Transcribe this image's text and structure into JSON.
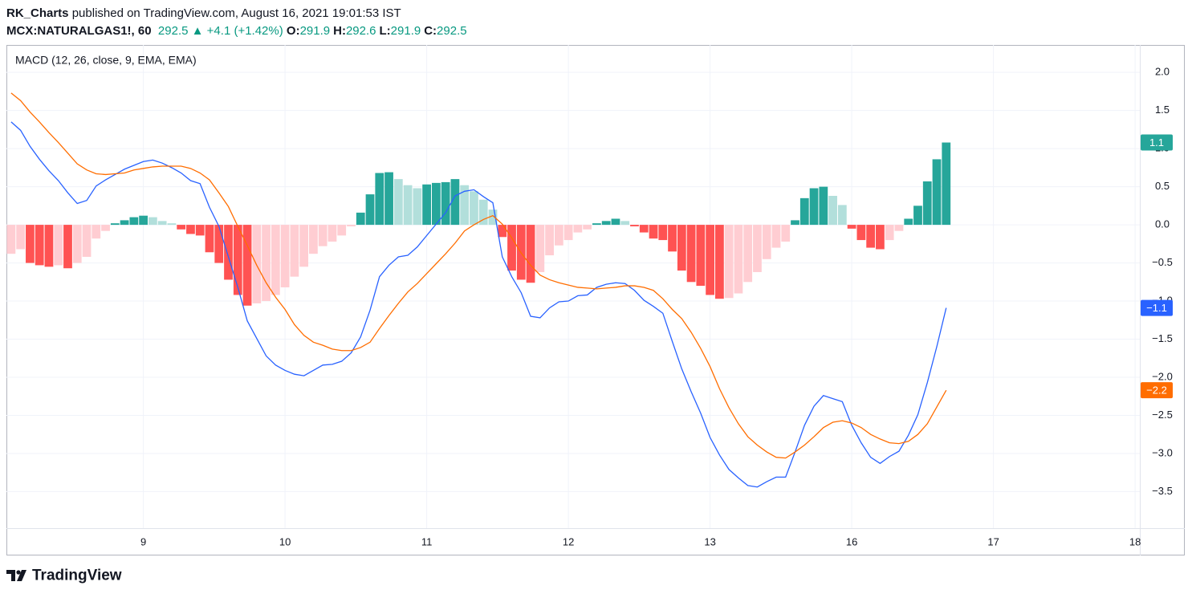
{
  "header": {
    "author": "RK_Charts",
    "published": "published on TradingView.com, August 16, 2021 19:01:53 IST",
    "symbol": "MCX:NATURALGAS1!, 60",
    "last": "292.5",
    "arrow": "▲",
    "change": "+4.1 (+1.42%)",
    "ohlc": [
      {
        "label": "O:",
        "value": "291.9"
      },
      {
        "label": "H:",
        "value": "292.6"
      },
      {
        "label": "L:",
        "value": "291.9"
      },
      {
        "label": "C:",
        "value": "292.5"
      }
    ]
  },
  "footer": {
    "brand": "TradingView"
  },
  "chart_data": {
    "type": "macd",
    "indicator": "MACD (12, 26, close, 9, EMA, EMA)",
    "categories": [
      null,
      null,
      null,
      null,
      null,
      null,
      null,
      null,
      null,
      null,
      null,
      null,
      null,
      null,
      "9",
      null,
      null,
      null,
      null,
      null,
      null,
      null,
      null,
      null,
      null,
      null,
      null,
      null,
      null,
      "10",
      null,
      null,
      null,
      null,
      null,
      null,
      null,
      null,
      null,
      null,
      null,
      null,
      null,
      null,
      "11",
      null,
      null,
      null,
      null,
      null,
      null,
      null,
      null,
      null,
      null,
      null,
      null,
      null,
      null,
      "12",
      null,
      null,
      null,
      null,
      null,
      null,
      null,
      null,
      null,
      null,
      null,
      null,
      null,
      null,
      "13",
      null,
      null,
      null,
      null,
      null,
      null,
      null,
      null,
      null,
      null,
      null,
      null,
      null,
      null,
      "16",
      null,
      null,
      null,
      null,
      null,
      null,
      null,
      null,
      null,
      null,
      null,
      null,
      null,
      null,
      "17",
      null,
      null,
      null,
      null,
      null,
      null,
      null,
      null,
      null,
      null,
      null,
      null,
      null,
      null,
      "18"
    ],
    "ylim": [
      -3.98,
      2.36
    ],
    "yticks": [
      {
        "value": 2,
        "label": "2.0"
      },
      {
        "value": 1.5,
        "label": "1.5"
      },
      {
        "value": 1,
        "label": "1.0"
      },
      {
        "value": 0.5,
        "label": "0.5"
      },
      {
        "value": 0,
        "label": "0.0"
      },
      {
        "value": -0.5,
        "label": "−0.5"
      },
      {
        "value": -1,
        "label": "−1.0"
      },
      {
        "value": -1.5,
        "label": "−1.5"
      },
      {
        "value": -2,
        "label": "−2.0"
      },
      {
        "value": -2.5,
        "label": "−2.5"
      },
      {
        "value": -3,
        "label": "−3.0"
      },
      {
        "value": -3.5,
        "label": "−3.5"
      }
    ],
    "grid": true,
    "series": [
      {
        "kind": "histogram",
        "last_label": "1.1",
        "color": "#26a69a",
        "palette": {
          "grow_above": "#26a69a",
          "fall_above": "#b2dfdb",
          "grow_below": "#ffcdd2",
          "fall_below": "#ff5252"
        },
        "values": [
          -0.38,
          -0.32,
          -0.5,
          -0.53,
          -0.55,
          -0.53,
          -0.57,
          -0.5,
          -0.42,
          -0.18,
          -0.08,
          0.02,
          0.06,
          0.1,
          0.12,
          0.1,
          0.05,
          0.02,
          -0.06,
          -0.12,
          -0.14,
          -0.36,
          -0.5,
          -0.72,
          -0.92,
          -1.06,
          -1.03,
          -1.0,
          -0.92,
          -0.82,
          -0.68,
          -0.55,
          -0.38,
          -0.28,
          -0.22,
          -0.14,
          -0.02,
          0.16,
          0.4,
          0.68,
          0.69,
          0.6,
          0.52,
          0.48,
          0.53,
          0.55,
          0.56,
          0.6,
          0.52,
          0.44,
          0.33,
          0.2,
          -0.16,
          -0.6,
          -0.72,
          -0.76,
          -0.62,
          -0.4,
          -0.27,
          -0.2,
          -0.1,
          -0.06,
          0.02,
          0.05,
          0.08,
          0.05,
          -0.02,
          -0.1,
          -0.18,
          -0.2,
          -0.35,
          -0.6,
          -0.75,
          -0.8,
          -0.92,
          -0.97,
          -0.96,
          -0.9,
          -0.75,
          -0.62,
          -0.45,
          -0.3,
          -0.22,
          0.06,
          0.35,
          0.48,
          0.5,
          0.38,
          0.26,
          -0.05,
          -0.2,
          -0.3,
          -0.32,
          -0.2,
          -0.08,
          0.08,
          0.25,
          0.57,
          0.86,
          1.08,
          null,
          null,
          null,
          null,
          null,
          null,
          null,
          null,
          null,
          null,
          null,
          null,
          null,
          null,
          null,
          null,
          null,
          null,
          null,
          null
        ]
      },
      {
        "kind": "line",
        "last_label": "−1.1",
        "color": "#2962ff",
        "values": [
          1.35,
          1.24,
          1.03,
          0.86,
          0.71,
          0.58,
          0.42,
          0.28,
          0.32,
          0.51,
          0.59,
          0.66,
          0.73,
          0.78,
          0.83,
          0.85,
          0.81,
          0.75,
          0.68,
          0.58,
          0.54,
          0.23,
          -0.02,
          -0.42,
          -0.82,
          -1.26,
          -1.49,
          -1.72,
          -1.84,
          -1.91,
          -1.96,
          -1.98,
          -1.91,
          -1.84,
          -1.83,
          -1.79,
          -1.68,
          -1.47,
          -1.12,
          -0.68,
          -0.53,
          -0.42,
          -0.4,
          -0.29,
          -0.14,
          0.01,
          0.16,
          0.38,
          0.44,
          0.46,
          0.37,
          0.29,
          -0.42,
          -0.68,
          -0.89,
          -1.2,
          -1.22,
          -1.09,
          -1.01,
          -1.0,
          -0.93,
          -0.92,
          -0.82,
          -0.78,
          -0.76,
          -0.77,
          -0.86,
          -0.99,
          -1.07,
          -1.16,
          -1.53,
          -1.89,
          -2.19,
          -2.47,
          -2.79,
          -3.02,
          -3.21,
          -3.32,
          -3.42,
          -3.44,
          -3.37,
          -3.31,
          -3.31,
          -2.98,
          -2.63,
          -2.38,
          -2.24,
          -2.28,
          -2.32,
          -2.63,
          -2.86,
          -3.05,
          -3.13,
          -3.04,
          -2.97,
          -2.76,
          -2.49,
          -2.07,
          -1.6,
          -1.09,
          null,
          null,
          null,
          null,
          null,
          null,
          null,
          null,
          null,
          null,
          null,
          null,
          null,
          null,
          null,
          null,
          null,
          null,
          null,
          null
        ]
      },
      {
        "kind": "line",
        "last_label": "−2.2",
        "color": "#ff6d00",
        "values": [
          1.73,
          1.63,
          1.48,
          1.35,
          1.21,
          1.08,
          0.94,
          0.8,
          0.72,
          0.67,
          0.66,
          0.67,
          0.68,
          0.72,
          0.74,
          0.76,
          0.77,
          0.77,
          0.77,
          0.74,
          0.68,
          0.59,
          0.42,
          0.24,
          -0.02,
          -0.27,
          -0.53,
          -0.76,
          -0.95,
          -1.11,
          -1.31,
          -1.45,
          -1.54,
          -1.58,
          -1.63,
          -1.65,
          -1.65,
          -1.61,
          -1.54,
          -1.36,
          -1.19,
          -1.03,
          -0.88,
          -0.77,
          -0.64,
          -0.51,
          -0.38,
          -0.24,
          -0.08,
          0.0,
          0.07,
          0.12,
          0.01,
          -0.17,
          -0.37,
          -0.53,
          -0.66,
          -0.72,
          -0.76,
          -0.79,
          -0.82,
          -0.83,
          -0.84,
          -0.83,
          -0.82,
          -0.8,
          -0.8,
          -0.82,
          -0.86,
          -0.97,
          -1.11,
          -1.23,
          -1.41,
          -1.62,
          -1.86,
          -2.15,
          -2.4,
          -2.61,
          -2.78,
          -2.89,
          -2.98,
          -3.05,
          -3.06,
          -2.98,
          -2.89,
          -2.78,
          -2.66,
          -2.59,
          -2.57,
          -2.6,
          -2.66,
          -2.75,
          -2.81,
          -2.86,
          -2.87,
          -2.84,
          -2.75,
          -2.61,
          -2.39,
          -2.17,
          null,
          null,
          null,
          null,
          null,
          null,
          null,
          null,
          null,
          null,
          null,
          null,
          null,
          null,
          null,
          null,
          null,
          null,
          null,
          null
        ]
      }
    ]
  }
}
